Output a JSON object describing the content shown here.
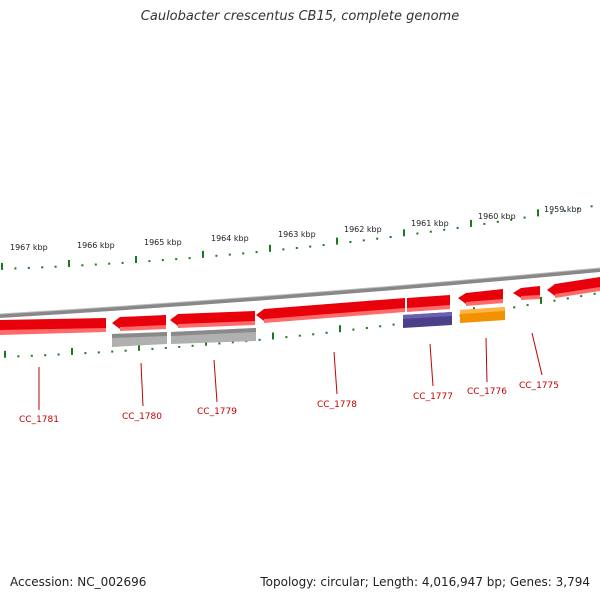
{
  "title": "Caulobacter crescentus CB15, complete genome",
  "footer": {
    "accession": "Accession: NC_002696",
    "summary": "Topology: circular; Length: 4,016,947 bp; Genes: 3,794"
  },
  "colors": {
    "forward_gene": "#e8000b",
    "gray_feature": "#b0b0b0",
    "purple_feature": "#4b3f8a",
    "orange_feature": "#f39200",
    "tick": "#1a7a1a",
    "label": "#c00000",
    "backbone": "#888888"
  },
  "ruler": {
    "labels": [
      "1967 kbp",
      "1966 kbp",
      "1965 kbp",
      "1964 kbp",
      "1963 kbp",
      "1962 kbp",
      "1961 kbp",
      "1960 kbp",
      "1959 kbp"
    ]
  },
  "genes": {
    "labels": [
      "CC_1781",
      "CC_1780",
      "CC_1779",
      "CC_1778",
      "CC_1777",
      "CC_1776",
      "CC_1775"
    ]
  }
}
